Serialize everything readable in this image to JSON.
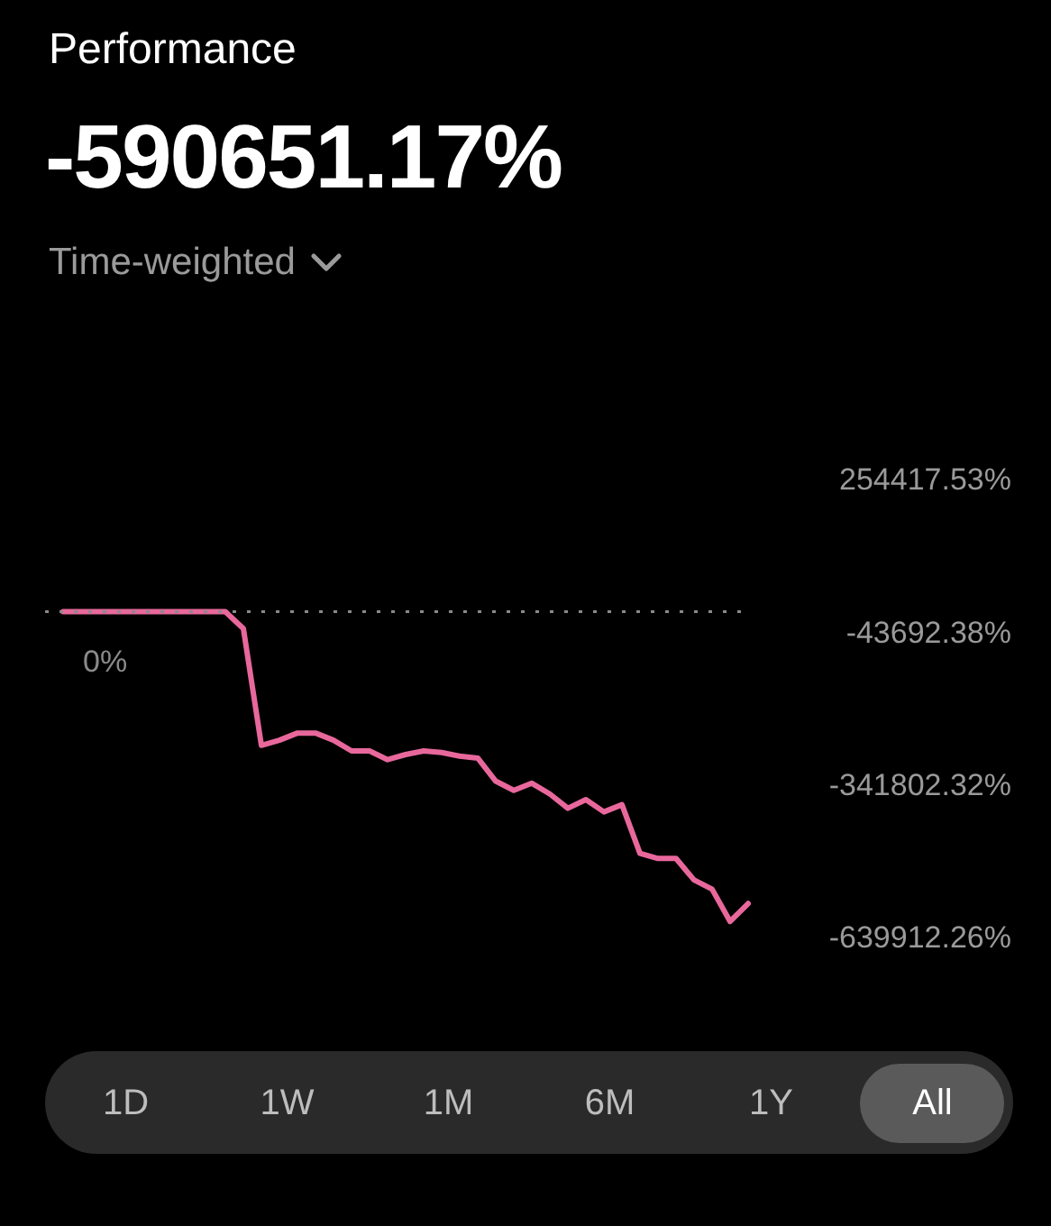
{
  "chart_data": {
    "type": "line",
    "title": "Performance",
    "subtitle": "-590651.17%",
    "annotations": [
      "Time-weighted",
      "1D",
      "1W",
      "1M",
      "6M",
      "1Y",
      "All"
    ],
    "categories": [
      null,
      null,
      null,
      null,
      null,
      null,
      null,
      null,
      null,
      null,
      null,
      null,
      null,
      null,
      null,
      null,
      null,
      null,
      null,
      null,
      null,
      null,
      null,
      null,
      null,
      null,
      null,
      null,
      null,
      null,
      null,
      null,
      null,
      null,
      null,
      null,
      null,
      null,
      null
    ],
    "series": [
      {
        "color": "#e8689c",
        "values": [
          0,
          0,
          0,
          0,
          0,
          0,
          0,
          0,
          0,
          0,
          -33000,
          -261000,
          -251000,
          -237000,
          -237000,
          -251000,
          -272000,
          -272000,
          -289000,
          -279000,
          -272000,
          -275000,
          -282000,
          -286000,
          -331000,
          -349000,
          -335000,
          -356000,
          -384000,
          -367000,
          -391000,
          -377000,
          -472000,
          -482000,
          -482000,
          -524000,
          -542000,
          -605000,
          -570000
        ]
      }
    ],
    "ylim": [
      -639912.26,
      254417.53
    ],
    "yticks": [
      {
        "value": 254417.53,
        "label": "254417.53%"
      },
      {
        "value": -43692.38,
        "label": "-43692.38%"
      },
      {
        "value": -341802.32,
        "label": "-341802.32%"
      },
      {
        "value": -639912.26,
        "label": "-639912.26%"
      }
    ],
    "ref_lines": [
      {
        "axis": "y",
        "value": 0,
        "label": "0%",
        "color": "#8a8a8a",
        "line_style": "dotted"
      }
    ],
    "tick_labels": "y",
    "grid": false,
    "legend": false,
    "marker": "none",
    "line_style": "solid"
  }
}
